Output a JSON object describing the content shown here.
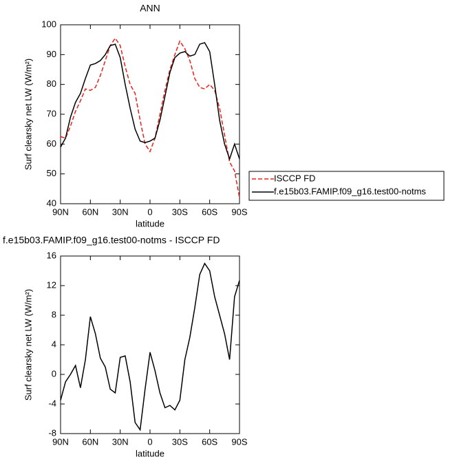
{
  "chart_data": [
    {
      "type": "line",
      "title": "ANN",
      "x_label": "latitude",
      "y_label": "Surf clearsky net LW (W/m²)",
      "x": [
        90,
        85,
        80,
        75,
        70,
        65,
        60,
        55,
        50,
        45,
        40,
        35,
        30,
        25,
        20,
        15,
        10,
        5,
        0,
        -5,
        -10,
        -15,
        -20,
        -25,
        -30,
        -35,
        -40,
        -45,
        -50,
        -55,
        -60,
        -65,
        -70,
        -75,
        -80,
        -85,
        -90
      ],
      "xlim": [
        90,
        -90
      ],
      "xticks": [
        {
          "value": 90,
          "label": "90N"
        },
        {
          "value": 60,
          "label": "60N"
        },
        {
          "value": 30,
          "label": "30N"
        },
        0,
        {
          "value": -30,
          "label": "30S"
        },
        {
          "value": -60,
          "label": "60S"
        },
        {
          "value": -90,
          "label": "90S"
        }
      ],
      "ylim": [
        40,
        100
      ],
      "yticks": [
        40,
        50,
        60,
        70,
        80,
        90,
        100
      ],
      "legend": "right",
      "series": [
        {
          "name": "ISCCP FD",
          "color": "#e8201a",
          "dashed": true,
          "values": [
            62.5,
            62,
            66,
            71,
            74.5,
            78.5,
            78,
            79,
            83,
            88,
            93,
            95.5,
            93,
            86,
            80,
            77,
            68,
            60,
            57.5,
            62,
            70,
            78,
            85,
            90,
            94.5,
            92,
            88,
            82,
            79,
            78.5,
            80,
            78,
            72,
            63,
            54,
            51,
            42
          ]
        },
        {
          "name": "f.e15b03.FAMIP.f09_g16.test00-notms",
          "color": "#000000",
          "dashed": false,
          "values": [
            59,
            62,
            69,
            74,
            77,
            82,
            86.5,
            87,
            88,
            90,
            93,
            93.5,
            89,
            80,
            72,
            65,
            61,
            60.5,
            61,
            62,
            68,
            76,
            84,
            89,
            90.5,
            91,
            89.5,
            90,
            93.5,
            94,
            91,
            80,
            68,
            60,
            55,
            60,
            55
          ]
        }
      ]
    },
    {
      "type": "line",
      "title": "f.e15b03.FAMIP.f09_g16.test00-notms - ISCCP FD",
      "x_label": "latitude",
      "y_label": "Surf clearsky net LW (W/m²)",
      "x": [
        90,
        85,
        80,
        75,
        70,
        65,
        60,
        55,
        50,
        45,
        40,
        35,
        30,
        25,
        20,
        15,
        10,
        5,
        0,
        -5,
        -10,
        -15,
        -20,
        -25,
        -30,
        -35,
        -40,
        -45,
        -50,
        -55,
        -60,
        -65,
        -70,
        -75,
        -80,
        -85,
        -90
      ],
      "xlim": [
        90,
        -90
      ],
      "xticks": [
        {
          "value": 90,
          "label": "90N"
        },
        {
          "value": 60,
          "label": "60N"
        },
        {
          "value": 30,
          "label": "30N"
        },
        0,
        {
          "value": -30,
          "label": "30S"
        },
        {
          "value": -60,
          "label": "60S"
        },
        {
          "value": -90,
          "label": "90S"
        }
      ],
      "ylim": [
        -8,
        16
      ],
      "yticks": [
        -8,
        -4,
        0,
        4,
        8,
        12,
        16
      ],
      "series": [
        {
          "color": "#000000",
          "dashed": false,
          "values": [
            -3.5,
            -1,
            0,
            1.2,
            -1.8,
            2,
            7.8,
            5.5,
            2.2,
            1,
            -2,
            -2.5,
            2.3,
            2.5,
            -1,
            -6.5,
            -7.5,
            -2,
            3,
            0.5,
            -2.5,
            -4.5,
            -4.2,
            -4.8,
            -3.5,
            2,
            5,
            9,
            13.5,
            15,
            14,
            10.5,
            8,
            5.5,
            2,
            10.5,
            12.7
          ]
        }
      ]
    }
  ]
}
